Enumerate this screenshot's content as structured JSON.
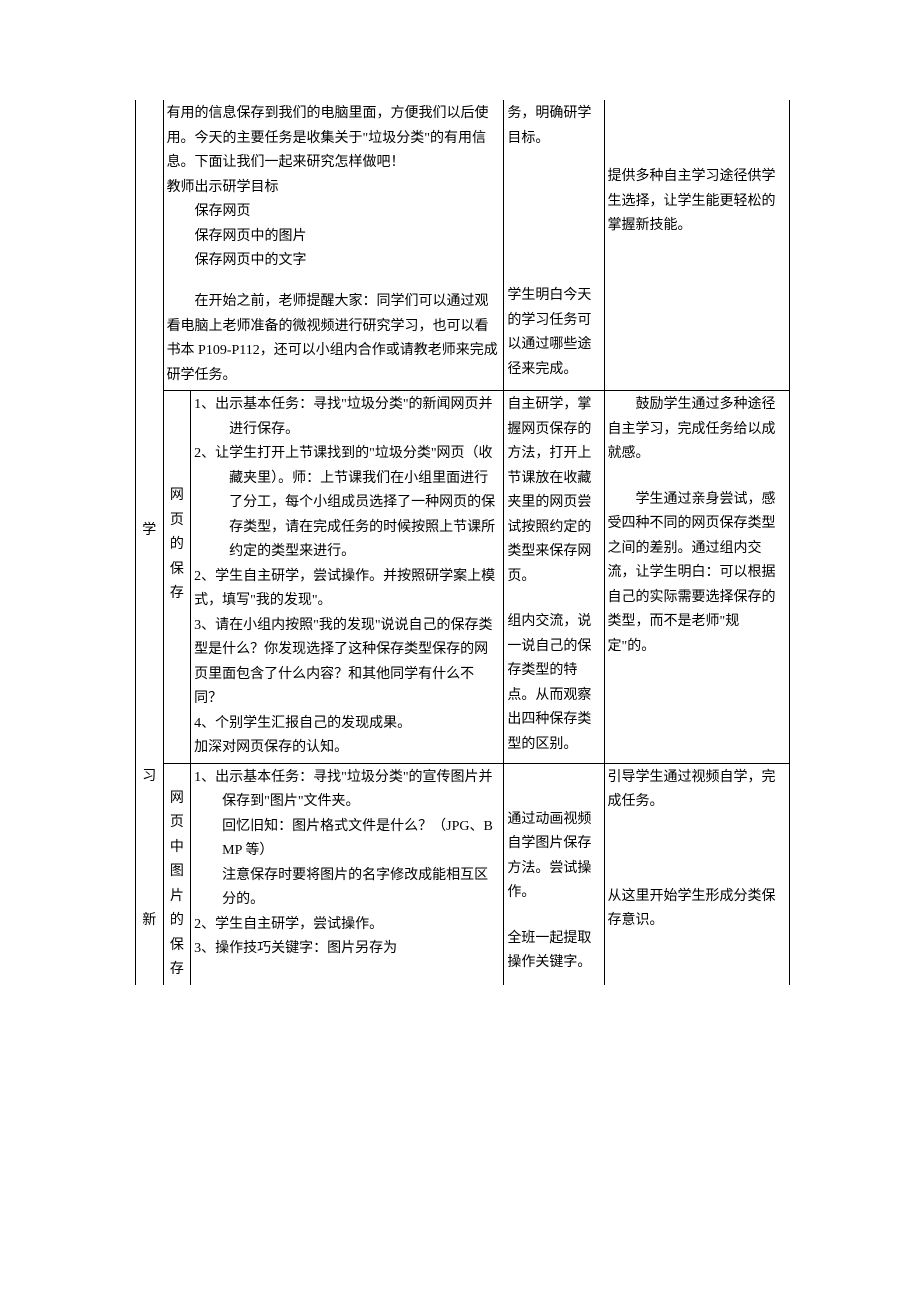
{
  "row1": {
    "col3": {
      "p1": "有用的信息保存到我们的电脑里面，方便我们以后使用。今天的主要任务是收集关于\"垃圾分类\"的有用信息。下面让我们一起来研究怎样做吧！",
      "p2": "教师出示研学目标",
      "p3": "保存网页",
      "p4": "保存网页中的图片",
      "p5": "保存网页中的文字",
      "p6": "　　在开始之前，老师提醒大家：同学们可以通过观看电脑上老师准备的微视频进行研究学习，也可以看书本 P109-P112，还可以小组内合作或请教老师来完成研学任务。"
    },
    "col4": {
      "p1": "务，明确研学目标。",
      "p2": "学生明白今天的学习任务可以通过哪些途径来完成。"
    },
    "col5": {
      "p1": "提供多种自主学习途径供学生选择，让学生能更轻松的掌握新技能。"
    }
  },
  "row2": {
    "col1": "学",
    "col2": "网页的保存",
    "col3": {
      "l1": "1、出示基本任务：寻找\"垃圾分类\"的新闻网页并进行保存。",
      "l2": "2、让学生打开上节课找到的\"垃圾分类\"网页（收藏夹里）。师：上节课我们在小组里面进行了分工，每个小组成员选择了一种网页的保存类型，请在完成任务的时候按照上节课所约定的类型来进行。",
      "l3": "2、学生自主研学，尝试操作。并按照研学案上模式，填写\"我的发现\"。",
      "l4": "3、请在小组内按照\"我的发现\"说说自己的保存类型是什么？你发现选择了这种保存类型保存的网页里面包含了什么内容？和其他同学有什么不同？",
      "l5": "4、个别学生汇报自己的发现成果。",
      "l6": "加深对网页保存的认知。"
    },
    "col4": {
      "p1": "自主研学，掌握网页保存的方法，打开上节课放在收藏夹里的网页尝试按照约定的类型来保存网页。",
      "p2": "组内交流，说一说自己的保存类型的特点。从而观察出四种保存类型的区别。"
    },
    "col5": {
      "p1": "　　鼓励学生通过多种途径自主学习，完成任务给以成就感。",
      "p2": "　　学生通过亲身尝试，感受四种不同的网页保存类型之间的差别。通过组内交流，让学生明白：可以根据自己的实际需要选择保存的类型，而不是老师\"规定\"的。"
    }
  },
  "row3": {
    "col1a": "习",
    "col1b": "新",
    "col2": "网页中图片的保存",
    "col3": {
      "l1": "1、出示基本任务：寻找\"垃圾分类\"的宣传图片并保存到\"图片\"文件夹。",
      "l2": "回忆旧知：图片格式文件是什么？（JPG、BMP 等）",
      "l3": "注意保存时要将图片的名字修改成能相互区分的。",
      "l4": "2、学生自主研学，尝试操作。",
      "l5": "3、操作技巧关键字：图片另存为"
    },
    "col4": {
      "p1": "通过动画视频自学图片保存方法。尝试操作。",
      "p2": "全班一起提取操作关键字。"
    },
    "col5": {
      "p1": "引导学生通过视频自学，完成任务。",
      "p2": "从这里开始学生形成分类保存意识。"
    }
  }
}
